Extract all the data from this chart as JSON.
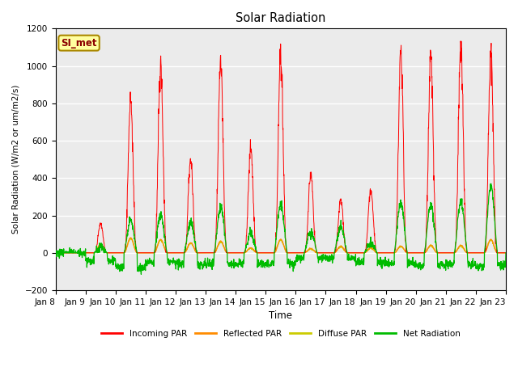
{
  "title": "Solar Radiation",
  "ylabel": "Solar Radiation (W/m2 or um/m2/s)",
  "xlabel": "Time",
  "ylim": [
    -200,
    1200
  ],
  "yticks": [
    -200,
    0,
    200,
    400,
    600,
    800,
    1000,
    1200
  ],
  "xtick_labels": [
    "Jan 8",
    "Jan 9",
    "Jan 10",
    "Jan 11",
    "Jan 12",
    "Jan 13",
    "Jan 14",
    "Jan 15",
    "Jan 16",
    "Jan 17",
    "Jan 18",
    "Jan 19",
    "Jan 20",
    "Jan 21",
    "Jan 22",
    "Jan 23"
  ],
  "colors": {
    "incoming": "#FF0000",
    "reflected": "#FF8C00",
    "diffuse": "#CCCC00",
    "net": "#00BB00",
    "plot_bg": "#EBEBEB"
  },
  "station_label": "SI_met",
  "legend_labels": [
    "Incoming PAR",
    "Reflected PAR",
    "Diffuse PAR",
    "Net Radiation"
  ],
  "day_peaks": {
    "incoming": [
      0,
      155,
      820,
      1000,
      500,
      1020,
      560,
      1040,
      420,
      280,
      340,
      1060,
      1040,
      1100,
      1080
    ],
    "reflected": [
      0,
      50,
      90,
      80,
      60,
      70,
      30,
      80,
      25,
      40,
      30,
      40,
      45,
      45,
      80
    ],
    "diffuse": [
      0,
      50,
      90,
      80,
      60,
      70,
      30,
      80,
      25,
      40,
      30,
      40,
      45,
      45,
      80
    ],
    "net": [
      0,
      30,
      170,
      200,
      160,
      240,
      100,
      260,
      110,
      140,
      50,
      270,
      260,
      270,
      360
    ],
    "net_night": [
      0,
      -40,
      -80,
      -50,
      -60,
      -60,
      -60,
      -60,
      -30,
      -30,
      -50,
      -60,
      -70,
      -60,
      -70
    ]
  },
  "n_points": 2000
}
